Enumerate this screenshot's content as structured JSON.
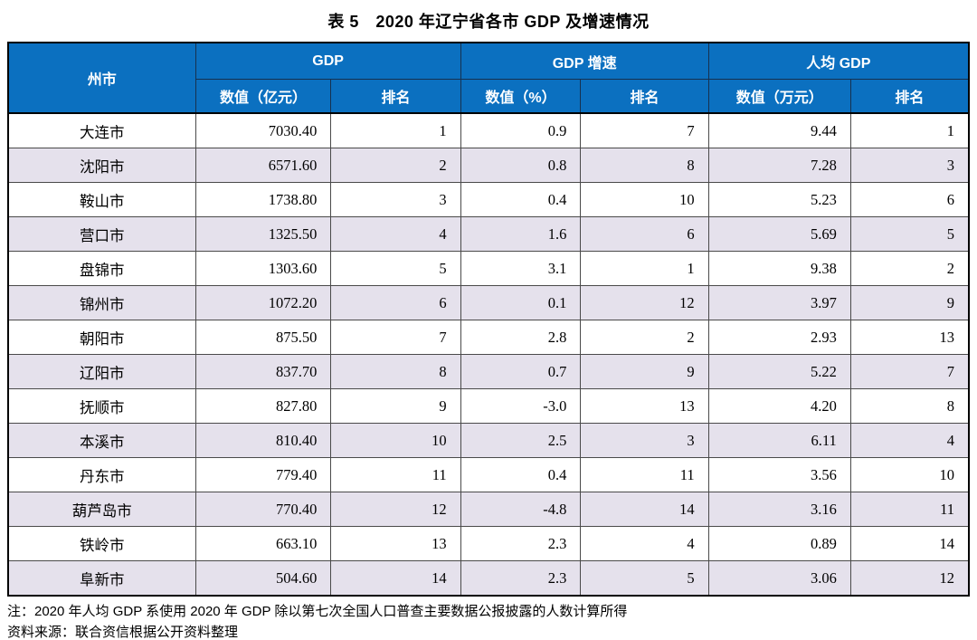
{
  "title": "表 5　2020 年辽宁省各市 GDP 及增速情况",
  "table": {
    "city_header": "州市",
    "groups": [
      {
        "label": "GDP"
      },
      {
        "label": "GDP 增速"
      },
      {
        "label": "人均 GDP"
      }
    ],
    "subheaders": [
      "数值（亿元）",
      "排名",
      "数值（%）",
      "排名",
      "数值（万元）",
      "排名"
    ],
    "fields": [
      "city",
      "gdp",
      "gdp_rank",
      "growth",
      "growth_rank",
      "per_capita",
      "per_capita_rank"
    ],
    "rows": [
      {
        "city": "大连市",
        "gdp": "7030.40",
        "gdp_rank": "1",
        "growth": "0.9",
        "growth_rank": "7",
        "per_capita": "9.44",
        "per_capita_rank": "1"
      },
      {
        "city": "沈阳市",
        "gdp": "6571.60",
        "gdp_rank": "2",
        "growth": "0.8",
        "growth_rank": "8",
        "per_capita": "7.28",
        "per_capita_rank": "3"
      },
      {
        "city": "鞍山市",
        "gdp": "1738.80",
        "gdp_rank": "3",
        "growth": "0.4",
        "growth_rank": "10",
        "per_capita": "5.23",
        "per_capita_rank": "6"
      },
      {
        "city": "营口市",
        "gdp": "1325.50",
        "gdp_rank": "4",
        "growth": "1.6",
        "growth_rank": "6",
        "per_capita": "5.69",
        "per_capita_rank": "5"
      },
      {
        "city": "盘锦市",
        "gdp": "1303.60",
        "gdp_rank": "5",
        "growth": "3.1",
        "growth_rank": "1",
        "per_capita": "9.38",
        "per_capita_rank": "2"
      },
      {
        "city": "锦州市",
        "gdp": "1072.20",
        "gdp_rank": "6",
        "growth": "0.1",
        "growth_rank": "12",
        "per_capita": "3.97",
        "per_capita_rank": "9"
      },
      {
        "city": "朝阳市",
        "gdp": "875.50",
        "gdp_rank": "7",
        "growth": "2.8",
        "growth_rank": "2",
        "per_capita": "2.93",
        "per_capita_rank": "13"
      },
      {
        "city": "辽阳市",
        "gdp": "837.70",
        "gdp_rank": "8",
        "growth": "0.7",
        "growth_rank": "9",
        "per_capita": "5.22",
        "per_capita_rank": "7"
      },
      {
        "city": "抚顺市",
        "gdp": "827.80",
        "gdp_rank": "9",
        "growth": "-3.0",
        "growth_rank": "13",
        "per_capita": "4.20",
        "per_capita_rank": "8"
      },
      {
        "city": "本溪市",
        "gdp": "810.40",
        "gdp_rank": "10",
        "growth": "2.5",
        "growth_rank": "3",
        "per_capita": "6.11",
        "per_capita_rank": "4"
      },
      {
        "city": "丹东市",
        "gdp": "779.40",
        "gdp_rank": "11",
        "growth": "0.4",
        "growth_rank": "11",
        "per_capita": "3.56",
        "per_capita_rank": "10"
      },
      {
        "city": "葫芦岛市",
        "gdp": "770.40",
        "gdp_rank": "12",
        "growth": "-4.8",
        "growth_rank": "14",
        "per_capita": "3.16",
        "per_capita_rank": "11"
      },
      {
        "city": "铁岭市",
        "gdp": "663.10",
        "gdp_rank": "13",
        "growth": "2.3",
        "growth_rank": "4",
        "per_capita": "0.89",
        "per_capita_rank": "14"
      },
      {
        "city": "阜新市",
        "gdp": "504.60",
        "gdp_rank": "14",
        "growth": "2.3",
        "growth_rank": "5",
        "per_capita": "3.06",
        "per_capita_rank": "12"
      }
    ]
  },
  "notes": {
    "note": "注：2020 年人均 GDP 系使用 2020 年 GDP 除以第七次全国人口普查主要数据公报披露的人数计算所得",
    "source": "资料来源：联合资信根据公开资料整理"
  },
  "colors": {
    "header_bg": "#0b70c0",
    "header_text": "#ffffff",
    "row_alt": "#e5e1ec",
    "grid_line": "#4a4a4a",
    "outer_border": "#000000"
  }
}
